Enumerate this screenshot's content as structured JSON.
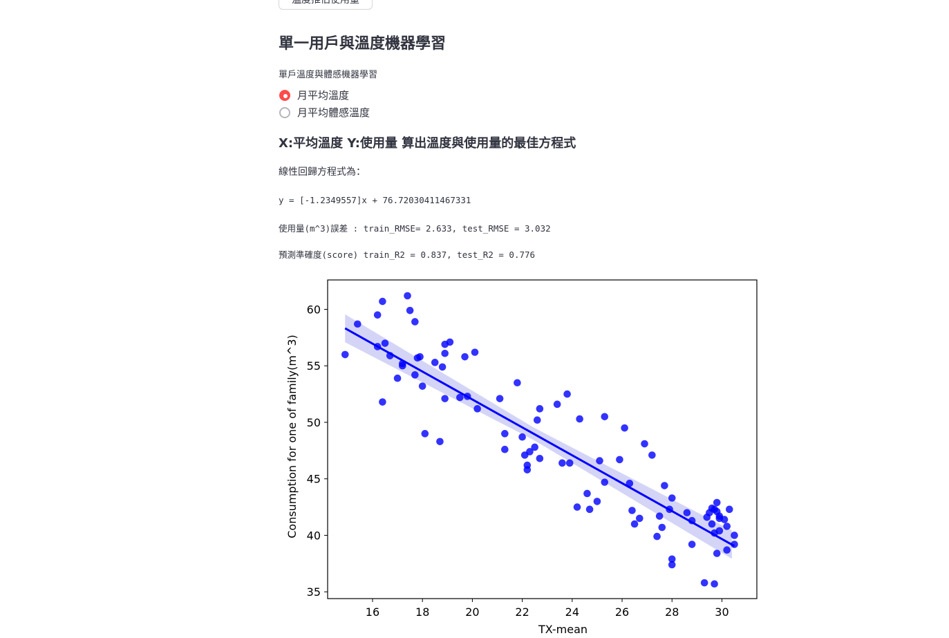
{
  "top_button": {
    "label": "溫度推估使用量"
  },
  "section": {
    "title": "單一用戶與溫度機器學習",
    "radio_group_label": "單戶溫度與體感機器學習",
    "radio_options": [
      {
        "label": "月平均溫度",
        "selected": true
      },
      {
        "label": "月平均體感溫度",
        "selected": false
      }
    ],
    "subtitle": "X:平均溫度 Y:使用量 算出溫度與使用量的最佳方程式",
    "equation_heading": "線性回歸方程式為：",
    "equation": "y = [-1.2349557]x + 76.72030411467331",
    "rmse_line": "使用量(m^3)誤差 : train_RMSE= 2.633, test_RMSE = 3.032",
    "r2_line": "預測準確度(score) train_R2 = 0.837, test_R2 = 0.776"
  },
  "colors": {
    "accent": "#ff4b4b",
    "point": "#0000ff",
    "band": "#c9c9f5"
  },
  "chart_data": {
    "type": "scatter",
    "xlabel": "TX-mean",
    "ylabel": "Consumption for one of family(m^3)",
    "xlim": [
      14.2,
      31.4
    ],
    "ylim": [
      34.4,
      62.6
    ],
    "xticks": [
      16,
      18,
      20,
      22,
      24,
      26,
      28,
      30
    ],
    "yticks": [
      35,
      40,
      45,
      50,
      55,
      60
    ],
    "regression": {
      "slope": -1.2349557,
      "intercept": 76.72030411467331,
      "x_range": [
        14.9,
        30.5
      ]
    },
    "points": [
      [
        14.9,
        56.0
      ],
      [
        15.4,
        58.7
      ],
      [
        16.2,
        59.5
      ],
      [
        16.2,
        56.7
      ],
      [
        16.4,
        60.7
      ],
      [
        16.4,
        51.8
      ],
      [
        16.5,
        57.0
      ],
      [
        16.7,
        55.9
      ],
      [
        17.0,
        53.9
      ],
      [
        17.2,
        55.0
      ],
      [
        17.2,
        55.2
      ],
      [
        17.4,
        61.2
      ],
      [
        17.5,
        59.9
      ],
      [
        17.7,
        58.9
      ],
      [
        17.7,
        54.2
      ],
      [
        17.8,
        55.7
      ],
      [
        17.9,
        55.8
      ],
      [
        18.0,
        53.2
      ],
      [
        18.1,
        49.0
      ],
      [
        18.5,
        55.3
      ],
      [
        18.7,
        48.3
      ],
      [
        18.8,
        54.9
      ],
      [
        18.9,
        56.1
      ],
      [
        18.9,
        56.9
      ],
      [
        18.9,
        52.1
      ],
      [
        19.1,
        57.1
      ],
      [
        19.5,
        52.2
      ],
      [
        19.7,
        55.8
      ],
      [
        19.8,
        52.3
      ],
      [
        20.1,
        56.2
      ],
      [
        20.2,
        51.2
      ],
      [
        21.1,
        52.1
      ],
      [
        21.3,
        49.0
      ],
      [
        21.3,
        47.6
      ],
      [
        21.8,
        53.5
      ],
      [
        22.0,
        48.7
      ],
      [
        22.1,
        47.1
      ],
      [
        22.2,
        46.2
      ],
      [
        22.2,
        45.8
      ],
      [
        22.3,
        47.4
      ],
      [
        22.5,
        47.8
      ],
      [
        22.6,
        50.2
      ],
      [
        22.7,
        51.2
      ],
      [
        22.7,
        46.8
      ],
      [
        23.4,
        51.6
      ],
      [
        23.6,
        46.4
      ],
      [
        23.8,
        52.5
      ],
      [
        23.9,
        46.4
      ],
      [
        24.2,
        42.5
      ],
      [
        24.3,
        50.3
      ],
      [
        24.6,
        43.7
      ],
      [
        24.7,
        42.3
      ],
      [
        25.0,
        43.0
      ],
      [
        25.1,
        46.6
      ],
      [
        25.3,
        50.5
      ],
      [
        25.3,
        44.7
      ],
      [
        25.9,
        46.7
      ],
      [
        26.1,
        49.5
      ],
      [
        26.3,
        44.6
      ],
      [
        26.4,
        42.2
      ],
      [
        26.5,
        41.0
      ],
      [
        26.7,
        41.5
      ],
      [
        26.9,
        48.1
      ],
      [
        27.2,
        47.1
      ],
      [
        27.4,
        39.9
      ],
      [
        27.5,
        41.7
      ],
      [
        27.6,
        40.7
      ],
      [
        27.7,
        44.4
      ],
      [
        27.9,
        42.3
      ],
      [
        28.0,
        43.3
      ],
      [
        28.0,
        37.9
      ],
      [
        28.0,
        37.4
      ],
      [
        28.6,
        42.0
      ],
      [
        28.8,
        41.3
      ],
      [
        28.8,
        39.2
      ],
      [
        29.3,
        35.8
      ],
      [
        29.4,
        41.6
      ],
      [
        29.5,
        42.0
      ],
      [
        29.6,
        42.4
      ],
      [
        29.6,
        41.0
      ],
      [
        29.7,
        40.2
      ],
      [
        29.7,
        35.7
      ],
      [
        29.7,
        42.3
      ],
      [
        29.8,
        38.4
      ],
      [
        29.8,
        42.9
      ],
      [
        29.8,
        42.1
      ],
      [
        29.9,
        41.7
      ],
      [
        29.9,
        40.4
      ],
      [
        29.9,
        41.5
      ],
      [
        30.1,
        41.4
      ],
      [
        30.2,
        38.7
      ],
      [
        30.2,
        40.8
      ],
      [
        30.3,
        42.3
      ],
      [
        30.5,
        40.0
      ],
      [
        30.5,
        39.2
      ]
    ]
  }
}
